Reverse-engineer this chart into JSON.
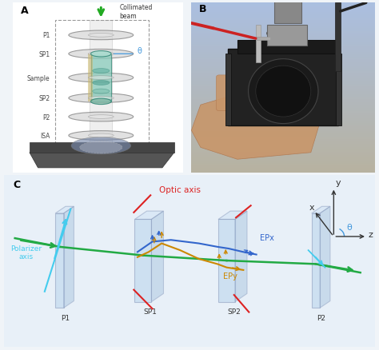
{
  "fig_width": 4.74,
  "fig_height": 4.39,
  "dpi": 100,
  "bg_color": "#f0f4f8",
  "panel_A": {
    "label": "A",
    "components": [
      "P1",
      "SP1",
      "Sample",
      "SP2",
      "P2",
      "ISA"
    ],
    "y_positions": [
      8.1,
      7.0,
      5.6,
      4.4,
      3.3,
      2.2
    ],
    "arrow_color": "#22aa22",
    "collimated_text": "Collimated\nbeam",
    "theta_color": "#4499dd",
    "theta_label": "θ",
    "cylinder_face": "#88ccbb",
    "cylinder_edge": "#338877",
    "lens_face": "#cccccc",
    "lens_edge": "#888888",
    "base_face": "#555555",
    "isa_face": "#778899"
  },
  "panel_B": {
    "label": "B",
    "bg_color_top": "#aac0e0",
    "bg_color_bot": "#b8b0a0"
  },
  "panel_C": {
    "label": "C",
    "bg": "#e8f0f8",
    "optic_axis_color": "#dd2222",
    "optic_axis_label": "Optic axis",
    "polarizer_axis_color": "#44ccee",
    "polarizer_axis_label": "Polarizer\naxis",
    "EPx_color": "#3366cc",
    "EPx_label": "EPx",
    "EPy_color": "#cc8800",
    "EPy_label": "EPy",
    "beam_color": "#22aa44",
    "plate_face": "#b8d4ec",
    "plate_edge": "#8899bb",
    "axis_color": "#333333",
    "theta_arc_color": "#4499dd",
    "x_label": "x",
    "y_label": "y",
    "z_label": "z",
    "theta_label": "θ"
  }
}
